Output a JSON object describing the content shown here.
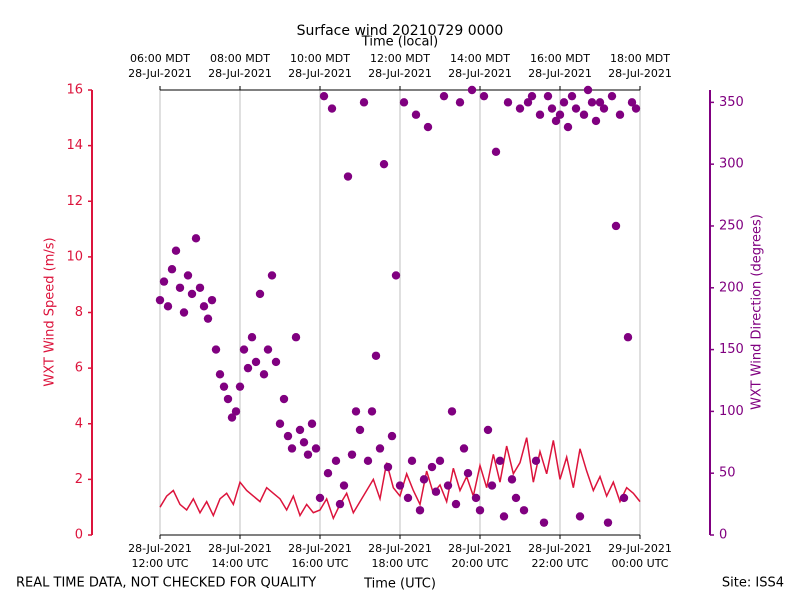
{
  "chart_data": {
    "type": "line",
    "title": "Surface wind 20210729 0000",
    "x_label": "Time (UTC)",
    "x2_label": "Time (local)",
    "y_label": "WXT Wind Speed (m/s)",
    "y2_label": "WXT Wind Direction (degrees)",
    "footer_left": "REAL TIME DATA, NOT CHECKED FOR QUALITY",
    "footer_right": "Site: ISS4",
    "xlim": [
      "2021-07-28 12:00",
      "2021-07-29 00:00"
    ],
    "xticks": [
      {
        "value": "2021-07-28 12:00",
        "label": [
          "28-Jul-2021",
          "12:00 UTC"
        ]
      },
      {
        "value": "2021-07-28 14:00",
        "label": [
          "28-Jul-2021",
          "14:00 UTC"
        ]
      },
      {
        "value": "2021-07-28 16:00",
        "label": [
          "28-Jul-2021",
          "16:00 UTC"
        ]
      },
      {
        "value": "2021-07-28 18:00",
        "label": [
          "28-Jul-2021",
          "18:00 UTC"
        ]
      },
      {
        "value": "2021-07-28 20:00",
        "label": [
          "28-Jul-2021",
          "20:00 UTC"
        ]
      },
      {
        "value": "2021-07-28 22:00",
        "label": [
          "28-Jul-2021",
          "22:00 UTC"
        ]
      },
      {
        "value": "2021-07-29 00:00",
        "label": [
          "29-Jul-2021",
          "00:00 UTC"
        ]
      }
    ],
    "x2ticks": [
      {
        "value": "2021-07-28 12:00",
        "label": [
          "06:00 MDT",
          "28-Jul-2021"
        ]
      },
      {
        "value": "2021-07-28 14:00",
        "label": [
          "08:00 MDT",
          "28-Jul-2021"
        ]
      },
      {
        "value": "2021-07-28 16:00",
        "label": [
          "10:00 MDT",
          "28-Jul-2021"
        ]
      },
      {
        "value": "2021-07-28 18:00",
        "label": [
          "12:00 MDT",
          "28-Jul-2021"
        ]
      },
      {
        "value": "2021-07-28 20:00",
        "label": [
          "14:00 MDT",
          "28-Jul-2021"
        ]
      },
      {
        "value": "2021-07-28 22:00",
        "label": [
          "16:00 MDT",
          "28-Jul-2021"
        ]
      },
      {
        "value": "2021-07-29 00:00",
        "label": [
          "18:00 MDT",
          "28-Jul-2021"
        ]
      }
    ],
    "ylim": [
      0,
      16
    ],
    "yticks": [
      0,
      2,
      4,
      6,
      8,
      10,
      12,
      14,
      16
    ],
    "y2lim": [
      0,
      360
    ],
    "y2ticks": [
      0,
      50,
      100,
      150,
      200,
      250,
      300,
      350
    ],
    "grid": true,
    "y_color": "#dc143c",
    "y2_color": "#800080",
    "series": [
      {
        "type": "line",
        "color": "#dc143c",
        "x": [
          "2021-07-28 12:00",
          "2021-07-28 12:10",
          "2021-07-28 12:20",
          "2021-07-28 12:30",
          "2021-07-28 12:40",
          "2021-07-28 12:50",
          "2021-07-28 13:00",
          "2021-07-28 13:10",
          "2021-07-28 13:20",
          "2021-07-28 13:30",
          "2021-07-28 13:40",
          "2021-07-28 13:50",
          "2021-07-28 14:00",
          "2021-07-28 14:10",
          "2021-07-28 14:20",
          "2021-07-28 14:30",
          "2021-07-28 14:40",
          "2021-07-28 14:50",
          "2021-07-28 15:00",
          "2021-07-28 15:10",
          "2021-07-28 15:20",
          "2021-07-28 15:30",
          "2021-07-28 15:40",
          "2021-07-28 15:50",
          "2021-07-28 16:00",
          "2021-07-28 16:10",
          "2021-07-28 16:20",
          "2021-07-28 16:30",
          "2021-07-28 16:40",
          "2021-07-28 16:50",
          "2021-07-28 17:00",
          "2021-07-28 17:10",
          "2021-07-28 17:20",
          "2021-07-28 17:30",
          "2021-07-28 17:40",
          "2021-07-28 17:50",
          "2021-07-28 18:00",
          "2021-07-28 18:10",
          "2021-07-28 18:20",
          "2021-07-28 18:30",
          "2021-07-28 18:40",
          "2021-07-28 18:50",
          "2021-07-28 19:00",
          "2021-07-28 19:10",
          "2021-07-28 19:20",
          "2021-07-28 19:30",
          "2021-07-28 19:40",
          "2021-07-28 19:50",
          "2021-07-28 20:00",
          "2021-07-28 20:10",
          "2021-07-28 20:20",
          "2021-07-28 20:30",
          "2021-07-28 20:40",
          "2021-07-28 20:50",
          "2021-07-28 21:00",
          "2021-07-28 21:10",
          "2021-07-28 21:20",
          "2021-07-28 21:30",
          "2021-07-28 21:40",
          "2021-07-28 21:50",
          "2021-07-28 22:00",
          "2021-07-28 22:10",
          "2021-07-28 22:20",
          "2021-07-28 22:30",
          "2021-07-28 22:40",
          "2021-07-28 22:50",
          "2021-07-28 23:00",
          "2021-07-28 23:10",
          "2021-07-28 23:20",
          "2021-07-28 23:30",
          "2021-07-28 23:40",
          "2021-07-28 23:50",
          "2021-07-29 00:00"
        ],
        "values": [
          1.0,
          1.4,
          1.6,
          1.1,
          0.9,
          1.3,
          0.8,
          1.2,
          0.7,
          1.3,
          1.5,
          1.1,
          1.9,
          1.6,
          1.4,
          1.2,
          1.7,
          1.5,
          1.3,
          0.9,
          1.4,
          0.7,
          1.1,
          0.8,
          0.9,
          1.3,
          0.6,
          1.1,
          1.5,
          0.8,
          1.2,
          1.6,
          2.0,
          1.3,
          2.6,
          1.7,
          1.4,
          2.2,
          1.6,
          1.1,
          2.3,
          1.5,
          1.8,
          1.2,
          2.4,
          1.6,
          2.1,
          1.4,
          2.5,
          1.7,
          2.9,
          1.9,
          3.2,
          2.2,
          2.6,
          3.5,
          1.9,
          3.0,
          2.2,
          3.4,
          2.0,
          2.8,
          1.7,
          3.1,
          2.3,
          1.6,
          2.1,
          1.4,
          1.9,
          1.2,
          1.7,
          1.5,
          1.2
        ]
      },
      {
        "type": "scatter",
        "axis": "y2",
        "color": "#800080",
        "x": [
          "2021-07-28 12:00",
          "2021-07-28 12:06",
          "2021-07-28 12:12",
          "2021-07-28 12:18",
          "2021-07-28 12:24",
          "2021-07-28 12:30",
          "2021-07-28 12:36",
          "2021-07-28 12:42",
          "2021-07-28 12:48",
          "2021-07-28 12:54",
          "2021-07-28 13:00",
          "2021-07-28 13:06",
          "2021-07-28 13:12",
          "2021-07-28 13:18",
          "2021-07-28 13:24",
          "2021-07-28 13:30",
          "2021-07-28 13:36",
          "2021-07-28 13:42",
          "2021-07-28 13:48",
          "2021-07-28 13:54",
          "2021-07-28 14:00",
          "2021-07-28 14:06",
          "2021-07-28 14:12",
          "2021-07-28 14:18",
          "2021-07-28 14:24",
          "2021-07-28 14:30",
          "2021-07-28 14:36",
          "2021-07-28 14:42",
          "2021-07-28 14:48",
          "2021-07-28 14:54",
          "2021-07-28 15:00",
          "2021-07-28 15:06",
          "2021-07-28 15:12",
          "2021-07-28 15:18",
          "2021-07-28 15:24",
          "2021-07-28 15:30",
          "2021-07-28 15:36",
          "2021-07-28 15:42",
          "2021-07-28 15:48",
          "2021-07-28 15:54",
          "2021-07-28 16:00",
          "2021-07-28 16:06",
          "2021-07-28 16:12",
          "2021-07-28 16:18",
          "2021-07-28 16:24",
          "2021-07-28 16:30",
          "2021-07-28 16:36",
          "2021-07-28 16:42",
          "2021-07-28 16:48",
          "2021-07-28 16:54",
          "2021-07-28 17:00",
          "2021-07-28 17:06",
          "2021-07-28 17:12",
          "2021-07-28 17:18",
          "2021-07-28 17:24",
          "2021-07-28 17:30",
          "2021-07-28 17:36",
          "2021-07-28 17:42",
          "2021-07-28 17:48",
          "2021-07-28 17:54",
          "2021-07-28 18:00",
          "2021-07-28 18:06",
          "2021-07-28 18:12",
          "2021-07-28 18:18",
          "2021-07-28 18:24",
          "2021-07-28 18:30",
          "2021-07-28 18:36",
          "2021-07-28 18:42",
          "2021-07-28 18:48",
          "2021-07-28 18:54",
          "2021-07-28 19:00",
          "2021-07-28 19:06",
          "2021-07-28 19:12",
          "2021-07-28 19:18",
          "2021-07-28 19:24",
          "2021-07-28 19:30",
          "2021-07-28 19:36",
          "2021-07-28 19:42",
          "2021-07-28 19:48",
          "2021-07-28 19:54",
          "2021-07-28 20:00",
          "2021-07-28 20:06",
          "2021-07-28 20:12",
          "2021-07-28 20:18",
          "2021-07-28 20:24",
          "2021-07-28 20:30",
          "2021-07-28 20:36",
          "2021-07-28 20:42",
          "2021-07-28 20:48",
          "2021-07-28 20:54",
          "2021-07-28 21:00",
          "2021-07-28 21:06",
          "2021-07-28 21:12",
          "2021-07-28 21:18",
          "2021-07-28 21:24",
          "2021-07-28 21:30",
          "2021-07-28 21:36",
          "2021-07-28 21:42",
          "2021-07-28 21:48",
          "2021-07-28 21:54",
          "2021-07-28 22:00",
          "2021-07-28 22:06",
          "2021-07-28 22:12",
          "2021-07-28 22:18",
          "2021-07-28 22:24",
          "2021-07-28 22:30",
          "2021-07-28 22:36",
          "2021-07-28 22:42",
          "2021-07-28 22:48",
          "2021-07-28 22:54",
          "2021-07-28 23:00",
          "2021-07-28 23:06",
          "2021-07-28 23:12",
          "2021-07-28 23:18",
          "2021-07-28 23:24",
          "2021-07-28 23:30",
          "2021-07-28 23:36",
          "2021-07-28 23:42",
          "2021-07-28 23:48",
          "2021-07-28 23:54"
        ],
        "values": [
          190,
          205,
          185,
          215,
          230,
          200,
          180,
          210,
          195,
          240,
          200,
          185,
          175,
          190,
          150,
          130,
          120,
          110,
          95,
          100,
          120,
          150,
          135,
          160,
          140,
          195,
          130,
          150,
          210,
          140,
          90,
          110,
          80,
          70,
          160,
          85,
          75,
          65,
          90,
          70,
          30,
          355,
          50,
          345,
          60,
          25,
          40,
          290,
          65,
          100,
          85,
          350,
          60,
          100,
          145,
          70,
          300,
          55,
          80,
          210,
          40,
          350,
          30,
          60,
          340,
          20,
          45,
          330,
          55,
          35,
          60,
          355,
          40,
          100,
          25,
          350,
          70,
          50,
          360,
          30,
          20,
          355,
          85,
          40,
          310,
          60,
          15,
          350,
          45,
          30,
          345,
          20,
          350,
          355,
          60,
          340,
          10,
          355,
          345,
          335,
          340,
          350,
          330,
          355,
          345,
          15,
          340,
          360,
          350,
          335,
          350,
          345,
          10,
          355,
          250,
          340,
          30,
          160,
          350,
          345
        ]
      }
    ]
  }
}
